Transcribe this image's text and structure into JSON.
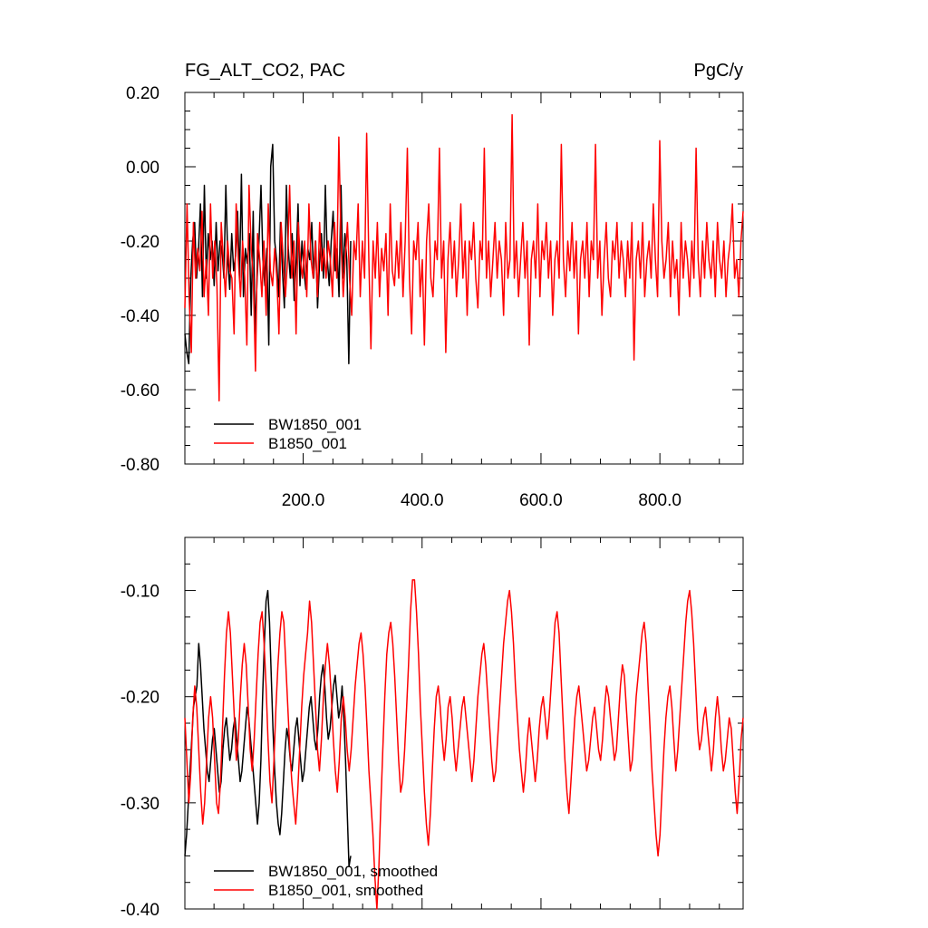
{
  "header": {
    "left_title": "FG_ALT_CO2, PAC",
    "units": "PgC/y"
  },
  "chart_data": [
    {
      "type": "line",
      "xlim": [
        1,
        940
      ],
      "ylim": [
        -0.8,
        0.2
      ],
      "yticks": [
        -0.8,
        -0.6,
        -0.4,
        -0.2,
        0.0,
        0.2
      ],
      "ytick_labels": [
        "-0.80",
        "-0.60",
        "-0.40",
        "-0.20",
        "0.00",
        "0.20"
      ],
      "xticks": [
        200,
        400,
        600,
        800
      ],
      "xtick_labels": [
        "200.0",
        "400.0",
        "600.0",
        "800.0"
      ],
      "legend_placement": "bottom-left",
      "series": [
        {
          "name": "BW1850_001",
          "color": "#000000",
          "x_range": [
            1,
            280
          ],
          "values": [
            -0.45,
            -0.5,
            -0.53,
            -0.3,
            -0.2,
            -0.15,
            -0.3,
            -0.22,
            -0.1,
            -0.35,
            -0.05,
            -0.3,
            -0.18,
            -0.25,
            -0.2,
            -0.32,
            -0.15,
            -0.28,
            -0.2,
            -0.22,
            -0.3,
            -0.05,
            -0.25,
            -0.33,
            -0.18,
            -0.28,
            -0.24,
            -0.12,
            -0.3,
            -0.02,
            -0.35,
            -0.22,
            -0.26,
            -0.18,
            -0.4,
            -0.12,
            -0.45,
            -0.3,
            -0.2,
            -0.05,
            -0.25,
            -0.32,
            -0.22,
            -0.48,
            0.0,
            0.06,
            -0.2,
            -0.25,
            -0.35,
            -0.15,
            -0.28,
            -0.38,
            -0.05,
            -0.22,
            -0.3,
            -0.18,
            -0.36,
            -0.26,
            -0.1,
            -0.32,
            -0.2,
            -0.28,
            -0.33,
            -0.22,
            -0.25,
            -0.15,
            -0.3,
            -0.2,
            -0.38,
            -0.26,
            -0.18,
            -0.3,
            -0.05,
            -0.25,
            -0.32,
            -0.2,
            -0.12,
            -0.28,
            -0.22,
            -0.35,
            -0.05,
            -0.3,
            -0.18,
            -0.25,
            -0.53,
            -0.2
          ]
        },
        {
          "name": "B1850_001",
          "color": "#ff0000",
          "x_range": [
            1,
            940
          ],
          "values": [
            -0.38,
            -0.1,
            -0.35,
            -0.5,
            -0.15,
            -0.3,
            -0.22,
            -0.28,
            -0.12,
            -0.35,
            -0.25,
            -0.4,
            -0.1,
            -0.3,
            -0.2,
            -0.32,
            -0.63,
            -0.15,
            -0.25,
            -0.35,
            -0.2,
            -0.28,
            -0.3,
            -0.45,
            -0.1,
            -0.25,
            -0.35,
            -0.2,
            -0.3,
            -0.48,
            -0.05,
            -0.22,
            -0.3,
            -0.55,
            -0.18,
            -0.25,
            -0.35,
            -0.2,
            -0.4,
            -0.1,
            -0.28,
            -0.32,
            -0.22,
            -0.3,
            -0.45,
            -0.15,
            -0.25,
            -0.35,
            -0.25,
            -0.05,
            -0.3,
            -0.2,
            -0.45,
            -0.15,
            -0.25,
            -0.3,
            -0.2,
            -0.35,
            -0.1,
            -0.25,
            -0.3,
            -0.2,
            -0.35,
            -0.15,
            -0.28,
            -0.22,
            -0.3,
            -0.2,
            -0.25,
            -0.35,
            -0.15,
            -0.3,
            0.08,
            -0.2,
            -0.35,
            -0.25,
            -0.15,
            -0.3,
            -0.4,
            -0.2,
            -0.25,
            -0.1,
            -0.35,
            -0.2,
            -0.3,
            0.09,
            -0.25,
            -0.49,
            -0.2,
            -0.3,
            -0.15,
            -0.35,
            -0.22,
            -0.28,
            -0.18,
            -0.4,
            -0.1,
            -0.28,
            -0.32,
            -0.2,
            -0.3,
            -0.15,
            -0.35,
            -0.2,
            0.05,
            -0.3,
            -0.45,
            -0.2,
            -0.25,
            -0.15,
            -0.35,
            -0.25,
            -0.48,
            -0.2,
            -0.1,
            -0.3,
            -0.35,
            -0.2,
            -0.25,
            0.05,
            -0.3,
            -0.2,
            -0.5,
            -0.25,
            -0.15,
            -0.3,
            -0.2,
            -0.35,
            -0.25,
            -0.1,
            -0.3,
            -0.2,
            -0.4,
            -0.2,
            -0.25,
            -0.15,
            -0.3,
            -0.38,
            -0.2,
            -0.25,
            0.05,
            -0.3,
            -0.2,
            -0.35,
            -0.25,
            -0.15,
            -0.3,
            -0.2,
            -0.25,
            -0.4,
            -0.15,
            -0.3,
            -0.25,
            0.14,
            -0.3,
            -0.2,
            -0.35,
            -0.25,
            -0.15,
            -0.3,
            -0.2,
            -0.48,
            -0.25,
            -0.2,
            -0.3,
            -0.1,
            -0.35,
            -0.2,
            -0.25,
            -0.15,
            -0.3,
            -0.2,
            -0.4,
            -0.25,
            -0.2,
            -0.3,
            0.06,
            -0.25,
            -0.35,
            -0.2,
            -0.28,
            -0.15,
            -0.3,
            -0.2,
            -0.45,
            -0.25,
            -0.2,
            -0.3,
            -0.15,
            -0.35,
            -0.2,
            -0.25,
            0.06,
            -0.3,
            -0.2,
            -0.4,
            -0.25,
            -0.15,
            -0.3,
            -0.35,
            -0.2,
            -0.25,
            -0.15,
            -0.3,
            -0.2,
            -0.25,
            -0.35,
            -0.2,
            -0.3,
            -0.15,
            -0.52,
            -0.25,
            -0.2,
            -0.3,
            -0.15,
            -0.35,
            -0.25,
            -0.2,
            -0.3,
            -0.1,
            -0.25,
            -0.35,
            0.07,
            -0.2,
            -0.3,
            -0.25,
            -0.15,
            -0.35,
            -0.2,
            -0.3,
            -0.25,
            -0.4,
            -0.15,
            -0.3,
            -0.2,
            -0.25,
            -0.35,
            -0.2,
            -0.3,
            0.05,
            -0.25,
            -0.35,
            -0.2,
            -0.3,
            -0.15,
            -0.25,
            -0.3,
            -0.2,
            -0.35,
            -0.15,
            -0.25,
            -0.3,
            -0.2,
            -0.35,
            -0.25,
            -0.2,
            -0.1,
            -0.3,
            -0.25,
            -0.35,
            -0.2,
            -0.12
          ]
        }
      ]
    },
    {
      "type": "line",
      "xlim": [
        1,
        940
      ],
      "ylim": [
        -0.4,
        -0.05
      ],
      "yticks": [
        -0.4,
        -0.3,
        -0.2,
        -0.1
      ],
      "ytick_labels": [
        "-0.40",
        "-0.30",
        "-0.20",
        "-0.10"
      ],
      "legend_placement": "bottom-left",
      "series": [
        {
          "name": "BW1850_001, smoothed",
          "color": "#000000",
          "x_range": [
            1,
            280
          ],
          "values": [
            -0.35,
            -0.33,
            -0.3,
            -0.27,
            -0.24,
            -0.21,
            -0.2,
            -0.19,
            -0.15,
            -0.17,
            -0.2,
            -0.23,
            -0.25,
            -0.27,
            -0.28,
            -0.26,
            -0.24,
            -0.23,
            -0.25,
            -0.27,
            -0.29,
            -0.28,
            -0.25,
            -0.23,
            -0.22,
            -0.24,
            -0.26,
            -0.25,
            -0.23,
            -0.22,
            -0.24,
            -0.26,
            -0.28,
            -0.27,
            -0.25,
            -0.23,
            -0.21,
            -0.22,
            -0.24,
            -0.26,
            -0.28,
            -0.3,
            -0.32,
            -0.3,
            -0.26,
            -0.2,
            -0.15,
            -0.11,
            -0.1,
            -0.13,
            -0.18,
            -0.23,
            -0.27,
            -0.3,
            -0.32,
            -0.33,
            -0.31,
            -0.28,
            -0.25,
            -0.23,
            -0.24,
            -0.26,
            -0.27,
            -0.25,
            -0.23,
            -0.22,
            -0.24,
            -0.26,
            -0.28,
            -0.27,
            -0.25,
            -0.23,
            -0.21,
            -0.2,
            -0.22,
            -0.24,
            -0.25,
            -0.23,
            -0.2,
            -0.18,
            -0.17,
            -0.19,
            -0.22,
            -0.24,
            -0.23,
            -0.21,
            -0.19,
            -0.18,
            -0.2,
            -0.22,
            -0.21,
            -0.19,
            -0.22,
            -0.26,
            -0.31,
            -0.36,
            -0.35
          ]
        },
        {
          "name": "B1850_001, smoothed",
          "color": "#ff0000",
          "x_range": [
            1,
            940
          ],
          "values": [
            -0.22,
            -0.26,
            -0.3,
            -0.27,
            -0.22,
            -0.19,
            -0.21,
            -0.25,
            -0.29,
            -0.32,
            -0.3,
            -0.26,
            -0.22,
            -0.2,
            -0.22,
            -0.26,
            -0.3,
            -0.31,
            -0.28,
            -0.23,
            -0.18,
            -0.14,
            -0.12,
            -0.14,
            -0.18,
            -0.22,
            -0.26,
            -0.24,
            -0.2,
            -0.17,
            -0.15,
            -0.17,
            -0.21,
            -0.25,
            -0.27,
            -0.24,
            -0.2,
            -0.16,
            -0.13,
            -0.12,
            -0.15,
            -0.19,
            -0.24,
            -0.28,
            -0.3,
            -0.26,
            -0.21,
            -0.17,
            -0.14,
            -0.12,
            -0.13,
            -0.17,
            -0.21,
            -0.25,
            -0.28,
            -0.3,
            -0.32,
            -0.29,
            -0.25,
            -0.21,
            -0.18,
            -0.16,
            -0.14,
            -0.11,
            -0.13,
            -0.17,
            -0.21,
            -0.25,
            -0.27,
            -0.24,
            -0.2,
            -0.17,
            -0.15,
            -0.17,
            -0.2,
            -0.24,
            -0.27,
            -0.29,
            -0.26,
            -0.22,
            -0.2,
            -0.22,
            -0.25,
            -0.27,
            -0.25,
            -0.22,
            -0.19,
            -0.17,
            -0.15,
            -0.14,
            -0.16,
            -0.19,
            -0.23,
            -0.27,
            -0.3,
            -0.33,
            -0.37,
            -0.4,
            -0.36,
            -0.3,
            -0.25,
            -0.2,
            -0.16,
            -0.14,
            -0.13,
            -0.15,
            -0.18,
            -0.22,
            -0.26,
            -0.29,
            -0.28,
            -0.25,
            -0.21,
            -0.17,
            -0.12,
            -0.09,
            -0.09,
            -0.12,
            -0.16,
            -0.21,
            -0.25,
            -0.29,
            -0.32,
            -0.34,
            -0.31,
            -0.27,
            -0.23,
            -0.2,
            -0.19,
            -0.21,
            -0.24,
            -0.26,
            -0.24,
            -0.21,
            -0.2,
            -0.22,
            -0.25,
            -0.27,
            -0.25,
            -0.23,
            -0.21,
            -0.2,
            -0.22,
            -0.24,
            -0.26,
            -0.28,
            -0.26,
            -0.23,
            -0.2,
            -0.18,
            -0.16,
            -0.15,
            -0.17,
            -0.2,
            -0.23,
            -0.26,
            -0.28,
            -0.27,
            -0.24,
            -0.21,
            -0.18,
            -0.15,
            -0.13,
            -0.11,
            -0.1,
            -0.12,
            -0.15,
            -0.19,
            -0.22,
            -0.25,
            -0.27,
            -0.29,
            -0.27,
            -0.24,
            -0.22,
            -0.24,
            -0.26,
            -0.28,
            -0.26,
            -0.23,
            -0.21,
            -0.2,
            -0.22,
            -0.24,
            -0.22,
            -0.19,
            -0.16,
            -0.13,
            -0.12,
            -0.14,
            -0.18,
            -0.22,
            -0.26,
            -0.29,
            -0.31,
            -0.28,
            -0.25,
            -0.22,
            -0.2,
            -0.19,
            -0.21,
            -0.23,
            -0.25,
            -0.27,
            -0.26,
            -0.24,
            -0.22,
            -0.21,
            -0.23,
            -0.25,
            -0.26,
            -0.24,
            -0.21,
            -0.19,
            -0.2,
            -0.22,
            -0.24,
            -0.26,
            -0.25,
            -0.22,
            -0.19,
            -0.17,
            -0.18,
            -0.21,
            -0.24,
            -0.27,
            -0.26,
            -0.23,
            -0.2,
            -0.18,
            -0.16,
            -0.14,
            -0.13,
            -0.15,
            -0.19,
            -0.23,
            -0.27,
            -0.3,
            -0.33,
            -0.35,
            -0.33,
            -0.29,
            -0.25,
            -0.22,
            -0.2,
            -0.19,
            -0.21,
            -0.24,
            -0.27,
            -0.25,
            -0.22,
            -0.19,
            -0.16,
            -0.13,
            -0.11,
            -0.1,
            -0.12,
            -0.15,
            -0.19,
            -0.23,
            -0.25,
            -0.24,
            -0.22,
            -0.21,
            -0.23,
            -0.25,
            -0.27,
            -0.25,
            -0.22,
            -0.2,
            -0.22,
            -0.25,
            -0.27,
            -0.26,
            -0.24,
            -0.22,
            -0.23,
            -0.26,
            -0.29,
            -0.31,
            -0.28,
            -0.24,
            -0.22
          ]
        }
      ]
    }
  ]
}
